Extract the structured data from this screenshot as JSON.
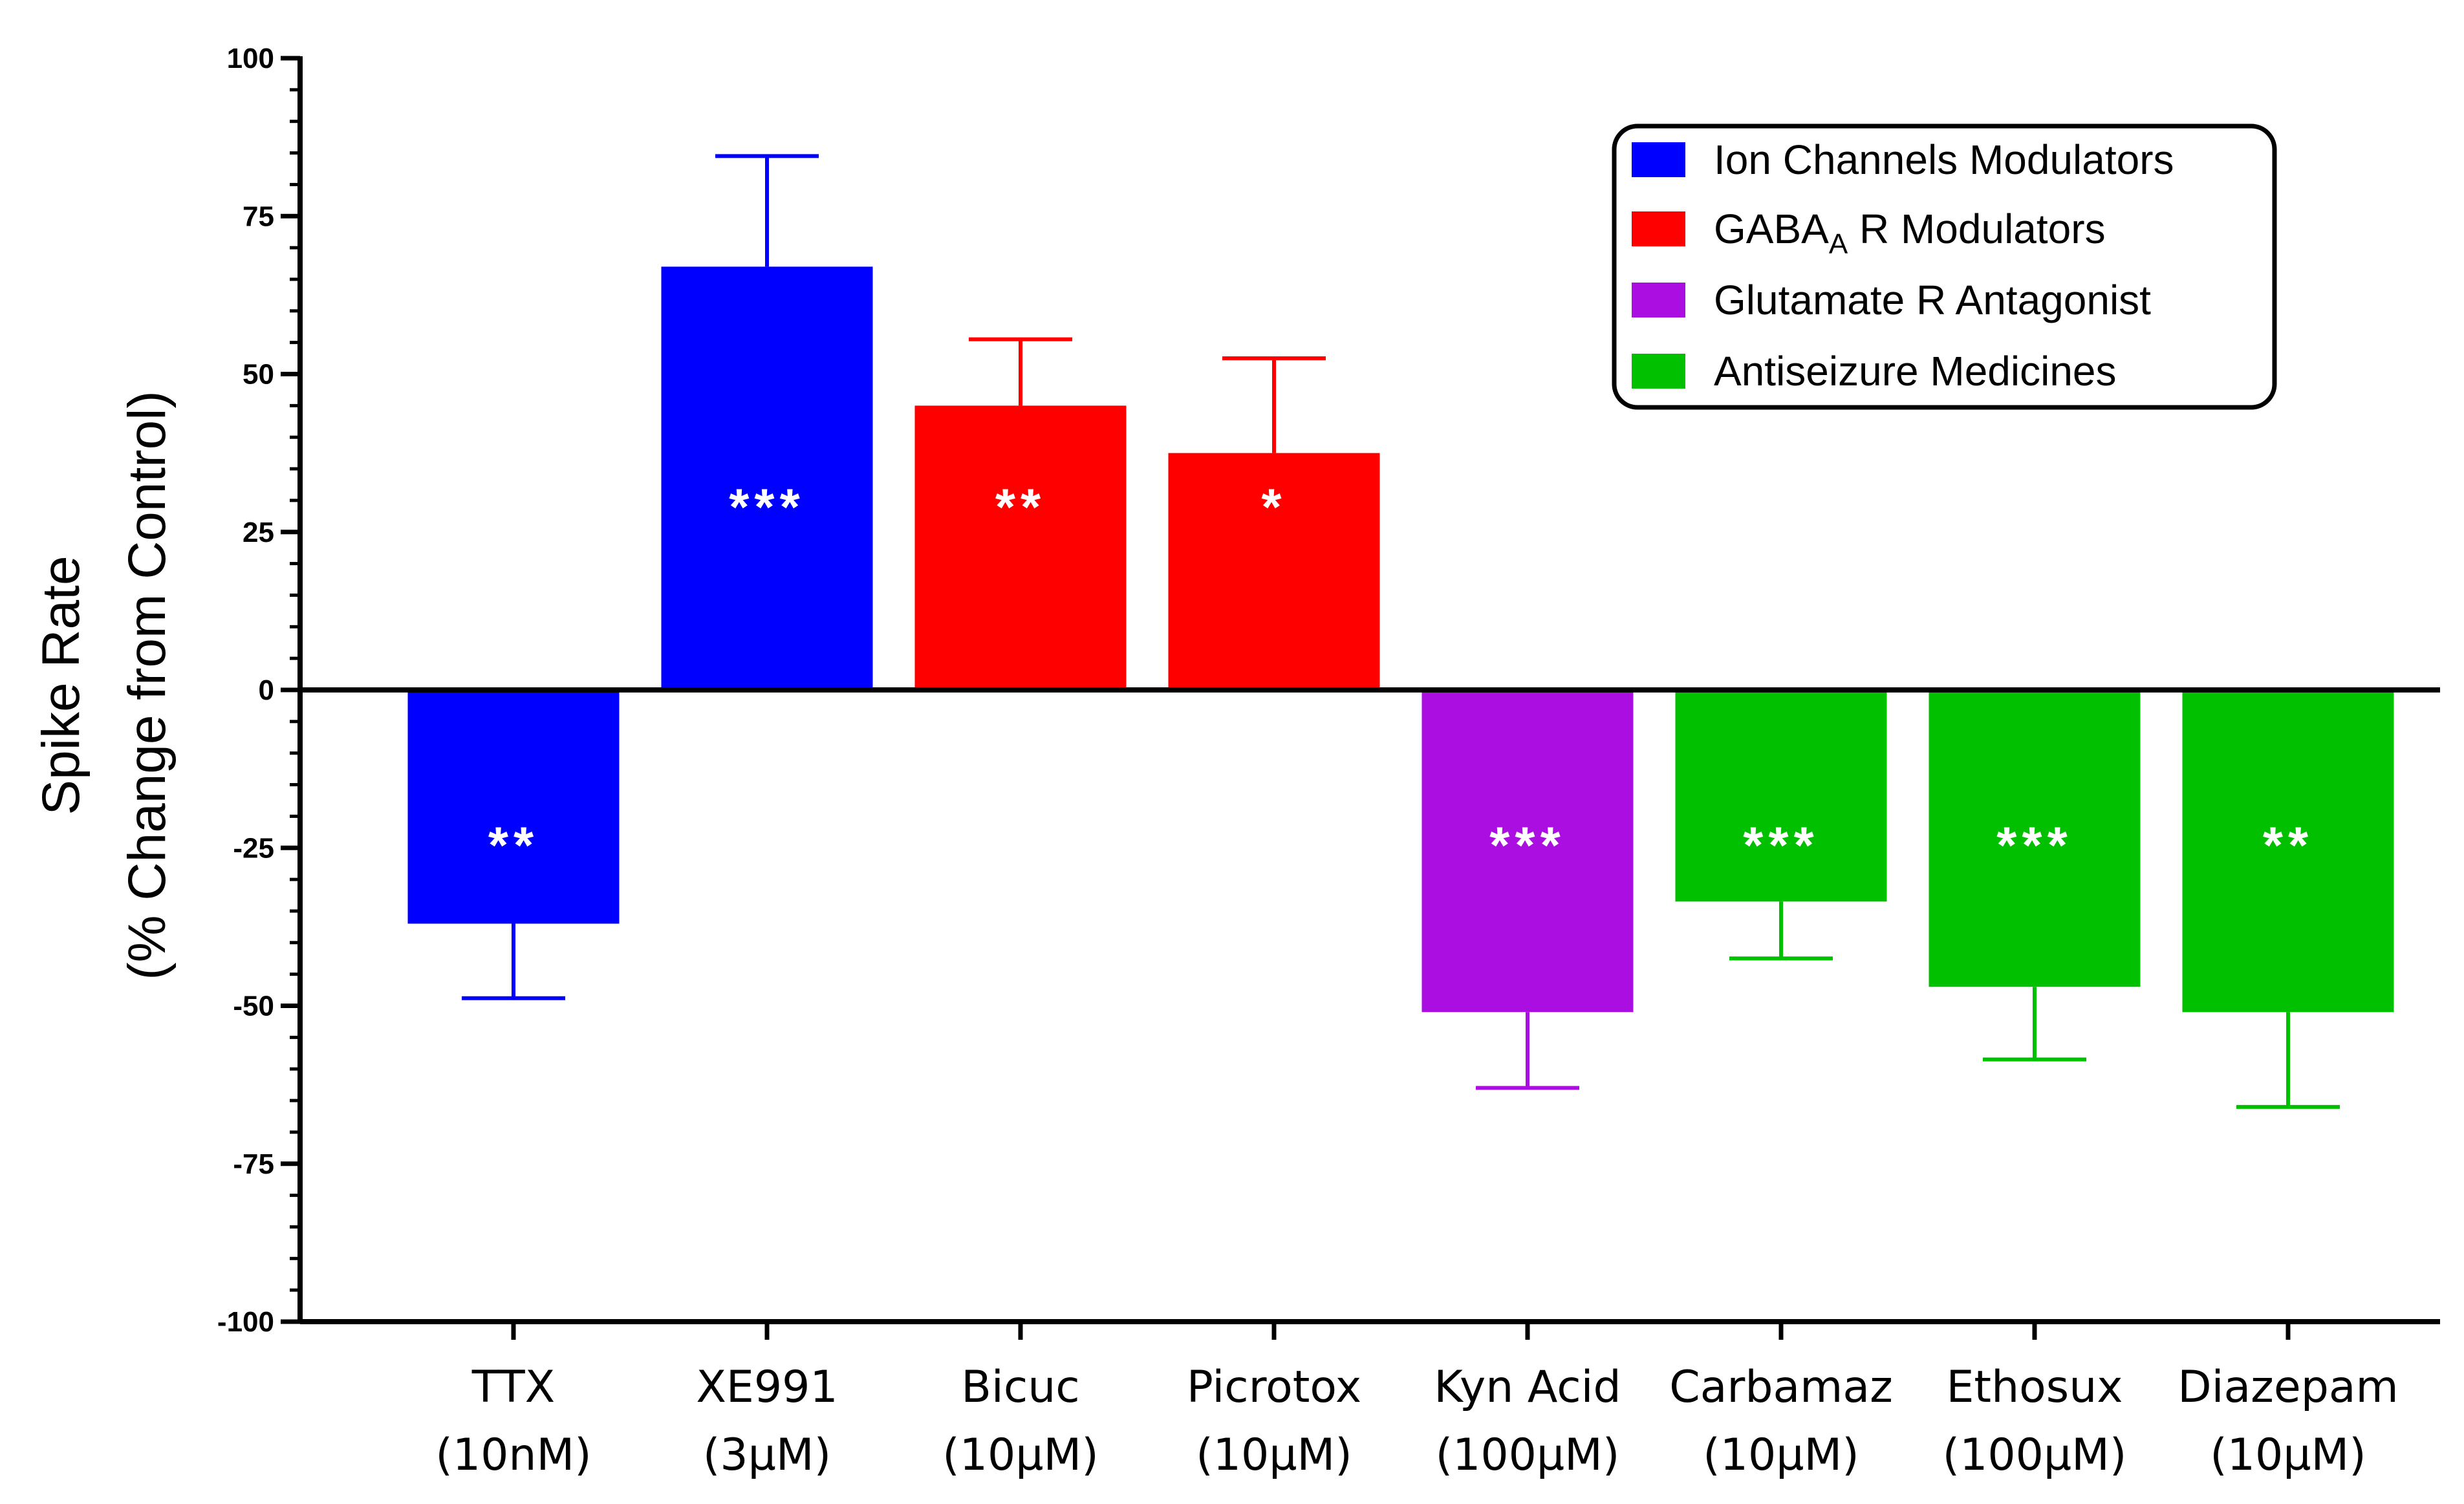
{
  "chart_data": {
    "type": "bar",
    "title": "",
    "xlabel": "",
    "ylabel": [
      "Spike Rate",
      "(% Change from Control)"
    ],
    "ylim": [
      -100,
      100
    ],
    "yticks": [
      100,
      75,
      50,
      25,
      0,
      -25,
      -50,
      -75,
      -100
    ],
    "ytick_labels": [
      "100",
      "75",
      "50",
      "25",
      "0",
      "-25",
      "-50",
      "-75",
      "-100"
    ],
    "categories": [
      {
        "name": "TTX",
        "dose": "(10nM)"
      },
      {
        "name": "XE991",
        "dose": "(3µM)"
      },
      {
        "name": "Bicuc",
        "dose": "(10µM)"
      },
      {
        "name": "Picrotox",
        "dose": "(10µM)"
      },
      {
        "name": "Kyn Acid",
        "dose": "(100µM)"
      },
      {
        "name": "Carbamaz",
        "dose": "(10µM)"
      },
      {
        "name": "Ethosux",
        "dose": "(100µM)"
      },
      {
        "name": "Diazepam",
        "dose": "(10µM)"
      }
    ],
    "values": [
      -37,
      67,
      45,
      37.5,
      -51,
      -33.5,
      -47,
      -51
    ],
    "errors": [
      11.8,
      17.5,
      10.5,
      15,
      12,
      9,
      11.5,
      15
    ],
    "significance": [
      "**",
      "***",
      "**",
      "*",
      "***",
      "***",
      "***",
      "**"
    ],
    "groups": [
      0,
      0,
      1,
      1,
      2,
      3,
      3,
      3
    ],
    "legend": {
      "placement": "top-right",
      "entries": [
        {
          "label": "Ion Channels Modulators",
          "color": "#0000ff"
        },
        {
          "label": "GABA",
          "sub": "A",
          "rest": " R Modulators",
          "color": "#ff0000"
        },
        {
          "label": "Glutamate R Antagonist",
          "color": "#aa0ee0"
        },
        {
          "label": "Antiseizure Medicines",
          "color": "#00c000"
        }
      ]
    },
    "grid": false
  }
}
